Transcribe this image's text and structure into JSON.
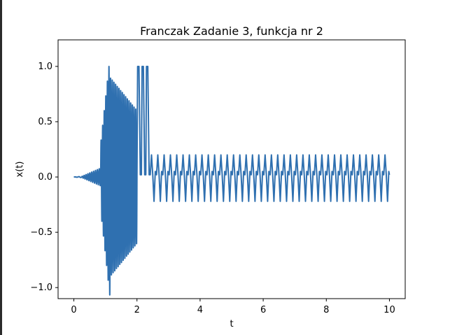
{
  "chart_data": {
    "type": "line",
    "title": "Franczak Zadanie 3, funkcja nr 2",
    "xlabel": "t",
    "ylabel": "x(t)",
    "xlim": [
      -0.5,
      10.5
    ],
    "ylim": [
      -1.1,
      1.24
    ],
    "xticks": [
      "0",
      "2",
      "4",
      "6",
      "8",
      "10"
    ],
    "yticks": [
      "−1.0",
      "−0.5",
      "0.0",
      "0.5",
      "1.0"
    ],
    "grid": false,
    "legend": "none",
    "line_color": "#2f70b0",
    "series": [
      {
        "segments": [
          {
            "type": "am_sine",
            "t_start": 0.0,
            "t_end": 0.25,
            "amp_start": 0.0,
            "amp_end": 0.005,
            "cycles": 2
          },
          {
            "type": "am_sine",
            "t_start": 0.25,
            "t_end": 0.85,
            "amp_start": 0.005,
            "amp_end": 0.08,
            "cycles": 10
          },
          {
            "type": "am_sine",
            "t_start": 0.85,
            "t_end": 1.15,
            "amp_start": 0.3,
            "amp_end": 1.1,
            "cycles": 6
          },
          {
            "type": "am_sine",
            "t_start": 1.15,
            "t_end": 2.0,
            "amp_start": 0.9,
            "amp_end": 0.6,
            "cycles": 16
          },
          {
            "type": "square",
            "t_start": 2.0,
            "t_end": 2.42,
            "low": 0.02,
            "high": 1.0,
            "cycles": 3
          },
          {
            "type": "periodic",
            "t_start": 2.42,
            "t_end": 10.0,
            "period": 0.2,
            "levels": [
              0.02,
              0.2,
              0.02,
              -0.22,
              0.05
            ]
          }
        ]
      }
    ]
  }
}
